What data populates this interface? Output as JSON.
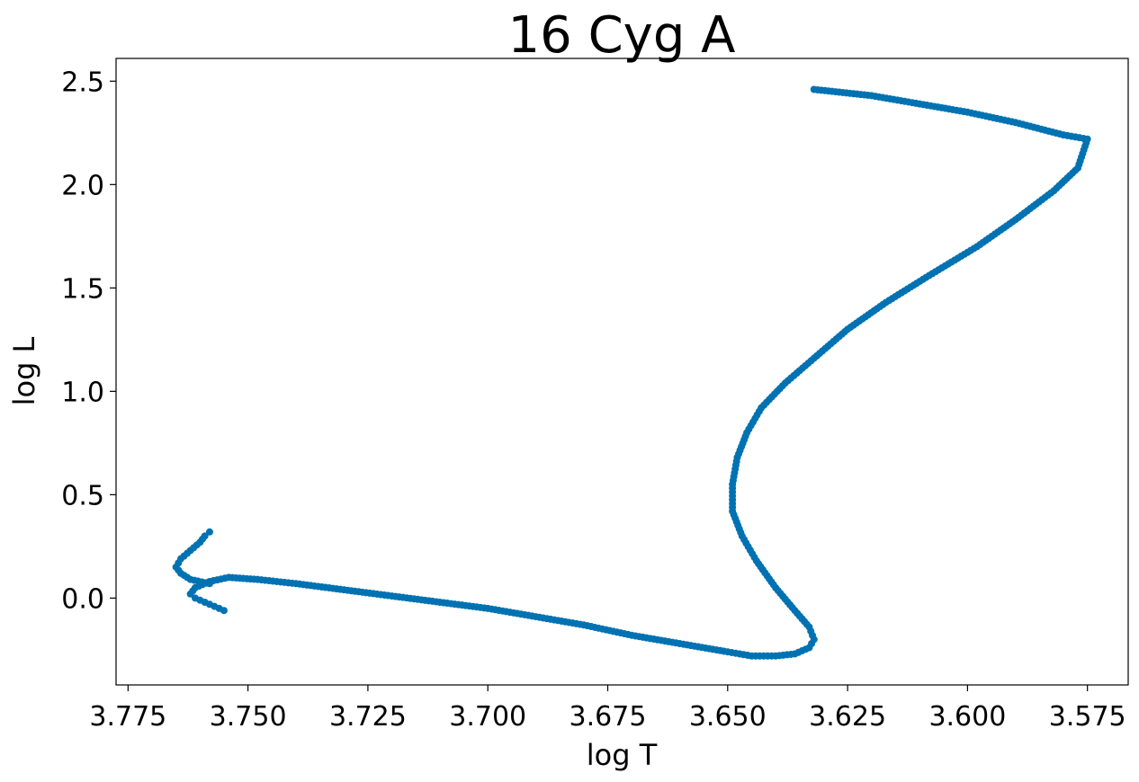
{
  "chart_data": {
    "type": "scatter",
    "title": "16 Cyg A",
    "xlabel": "log T",
    "ylabel": "log L",
    "xlim": [
      3.7775,
      3.5665
    ],
    "ylim": [
      -0.42,
      2.61
    ],
    "x_inverted": true,
    "x_ticks": [
      3.775,
      3.75,
      3.725,
      3.7,
      3.675,
      3.65,
      3.625,
      3.6,
      3.575
    ],
    "x_tick_labels": [
      "3.775",
      "3.750",
      "3.725",
      "3.700",
      "3.675",
      "3.650",
      "3.625",
      "3.600",
      "3.575"
    ],
    "y_ticks": [
      0.0,
      0.5,
      1.0,
      1.5,
      2.0,
      2.5
    ],
    "y_tick_labels": [
      "0.0",
      "0.5",
      "1.0",
      "1.5",
      "2.0",
      "2.5"
    ],
    "grid": false,
    "legend": "none",
    "marker_color": "#0072B2",
    "series": [
      {
        "points": [
          [
            3.755,
            -0.06
          ],
          [
            3.757,
            -0.04
          ],
          [
            3.759,
            -0.02
          ],
          [
            3.761,
            0.0
          ],
          [
            3.762,
            0.02
          ],
          [
            3.761,
            0.05
          ],
          [
            3.758,
            0.08
          ],
          [
            3.754,
            0.1
          ],
          [
            3.748,
            0.09
          ],
          [
            3.74,
            0.07
          ],
          [
            3.73,
            0.04
          ],
          [
            3.72,
            0.01
          ],
          [
            3.71,
            -0.02
          ],
          [
            3.7,
            -0.05
          ],
          [
            3.69,
            -0.09
          ],
          [
            3.68,
            -0.13
          ],
          [
            3.67,
            -0.18
          ],
          [
            3.66,
            -0.22
          ],
          [
            3.65,
            -0.26
          ],
          [
            3.645,
            -0.28
          ],
          [
            3.64,
            -0.28
          ],
          [
            3.636,
            -0.27
          ],
          [
            3.633,
            -0.24
          ],
          [
            3.632,
            -0.2
          ],
          [
            3.633,
            -0.14
          ],
          [
            3.636,
            -0.06
          ],
          [
            3.64,
            0.05
          ],
          [
            3.644,
            0.18
          ],
          [
            3.647,
            0.3
          ],
          [
            3.649,
            0.42
          ],
          [
            3.649,
            0.55
          ],
          [
            3.648,
            0.68
          ],
          [
            3.646,
            0.8
          ],
          [
            3.643,
            0.92
          ],
          [
            3.638,
            1.04
          ],
          [
            3.632,
            1.16
          ],
          [
            3.625,
            1.3
          ],
          [
            3.617,
            1.43
          ],
          [
            3.608,
            1.56
          ],
          [
            3.598,
            1.7
          ],
          [
            3.59,
            1.83
          ],
          [
            3.582,
            1.97
          ],
          [
            3.577,
            2.08
          ],
          [
            3.575,
            2.22
          ],
          [
            3.58,
            2.24
          ],
          [
            3.59,
            2.3
          ],
          [
            3.6,
            2.35
          ],
          [
            3.61,
            2.39
          ],
          [
            3.62,
            2.43
          ],
          [
            3.632,
            2.46
          ],
          [
            3.758,
            0.07
          ],
          [
            3.762,
            0.09
          ],
          [
            3.764,
            0.12
          ],
          [
            3.765,
            0.15
          ],
          [
            3.764,
            0.19
          ],
          [
            3.762,
            0.23
          ],
          [
            3.76,
            0.27
          ],
          [
            3.759,
            0.3
          ],
          [
            3.758,
            0.32
          ]
        ]
      }
    ]
  }
}
